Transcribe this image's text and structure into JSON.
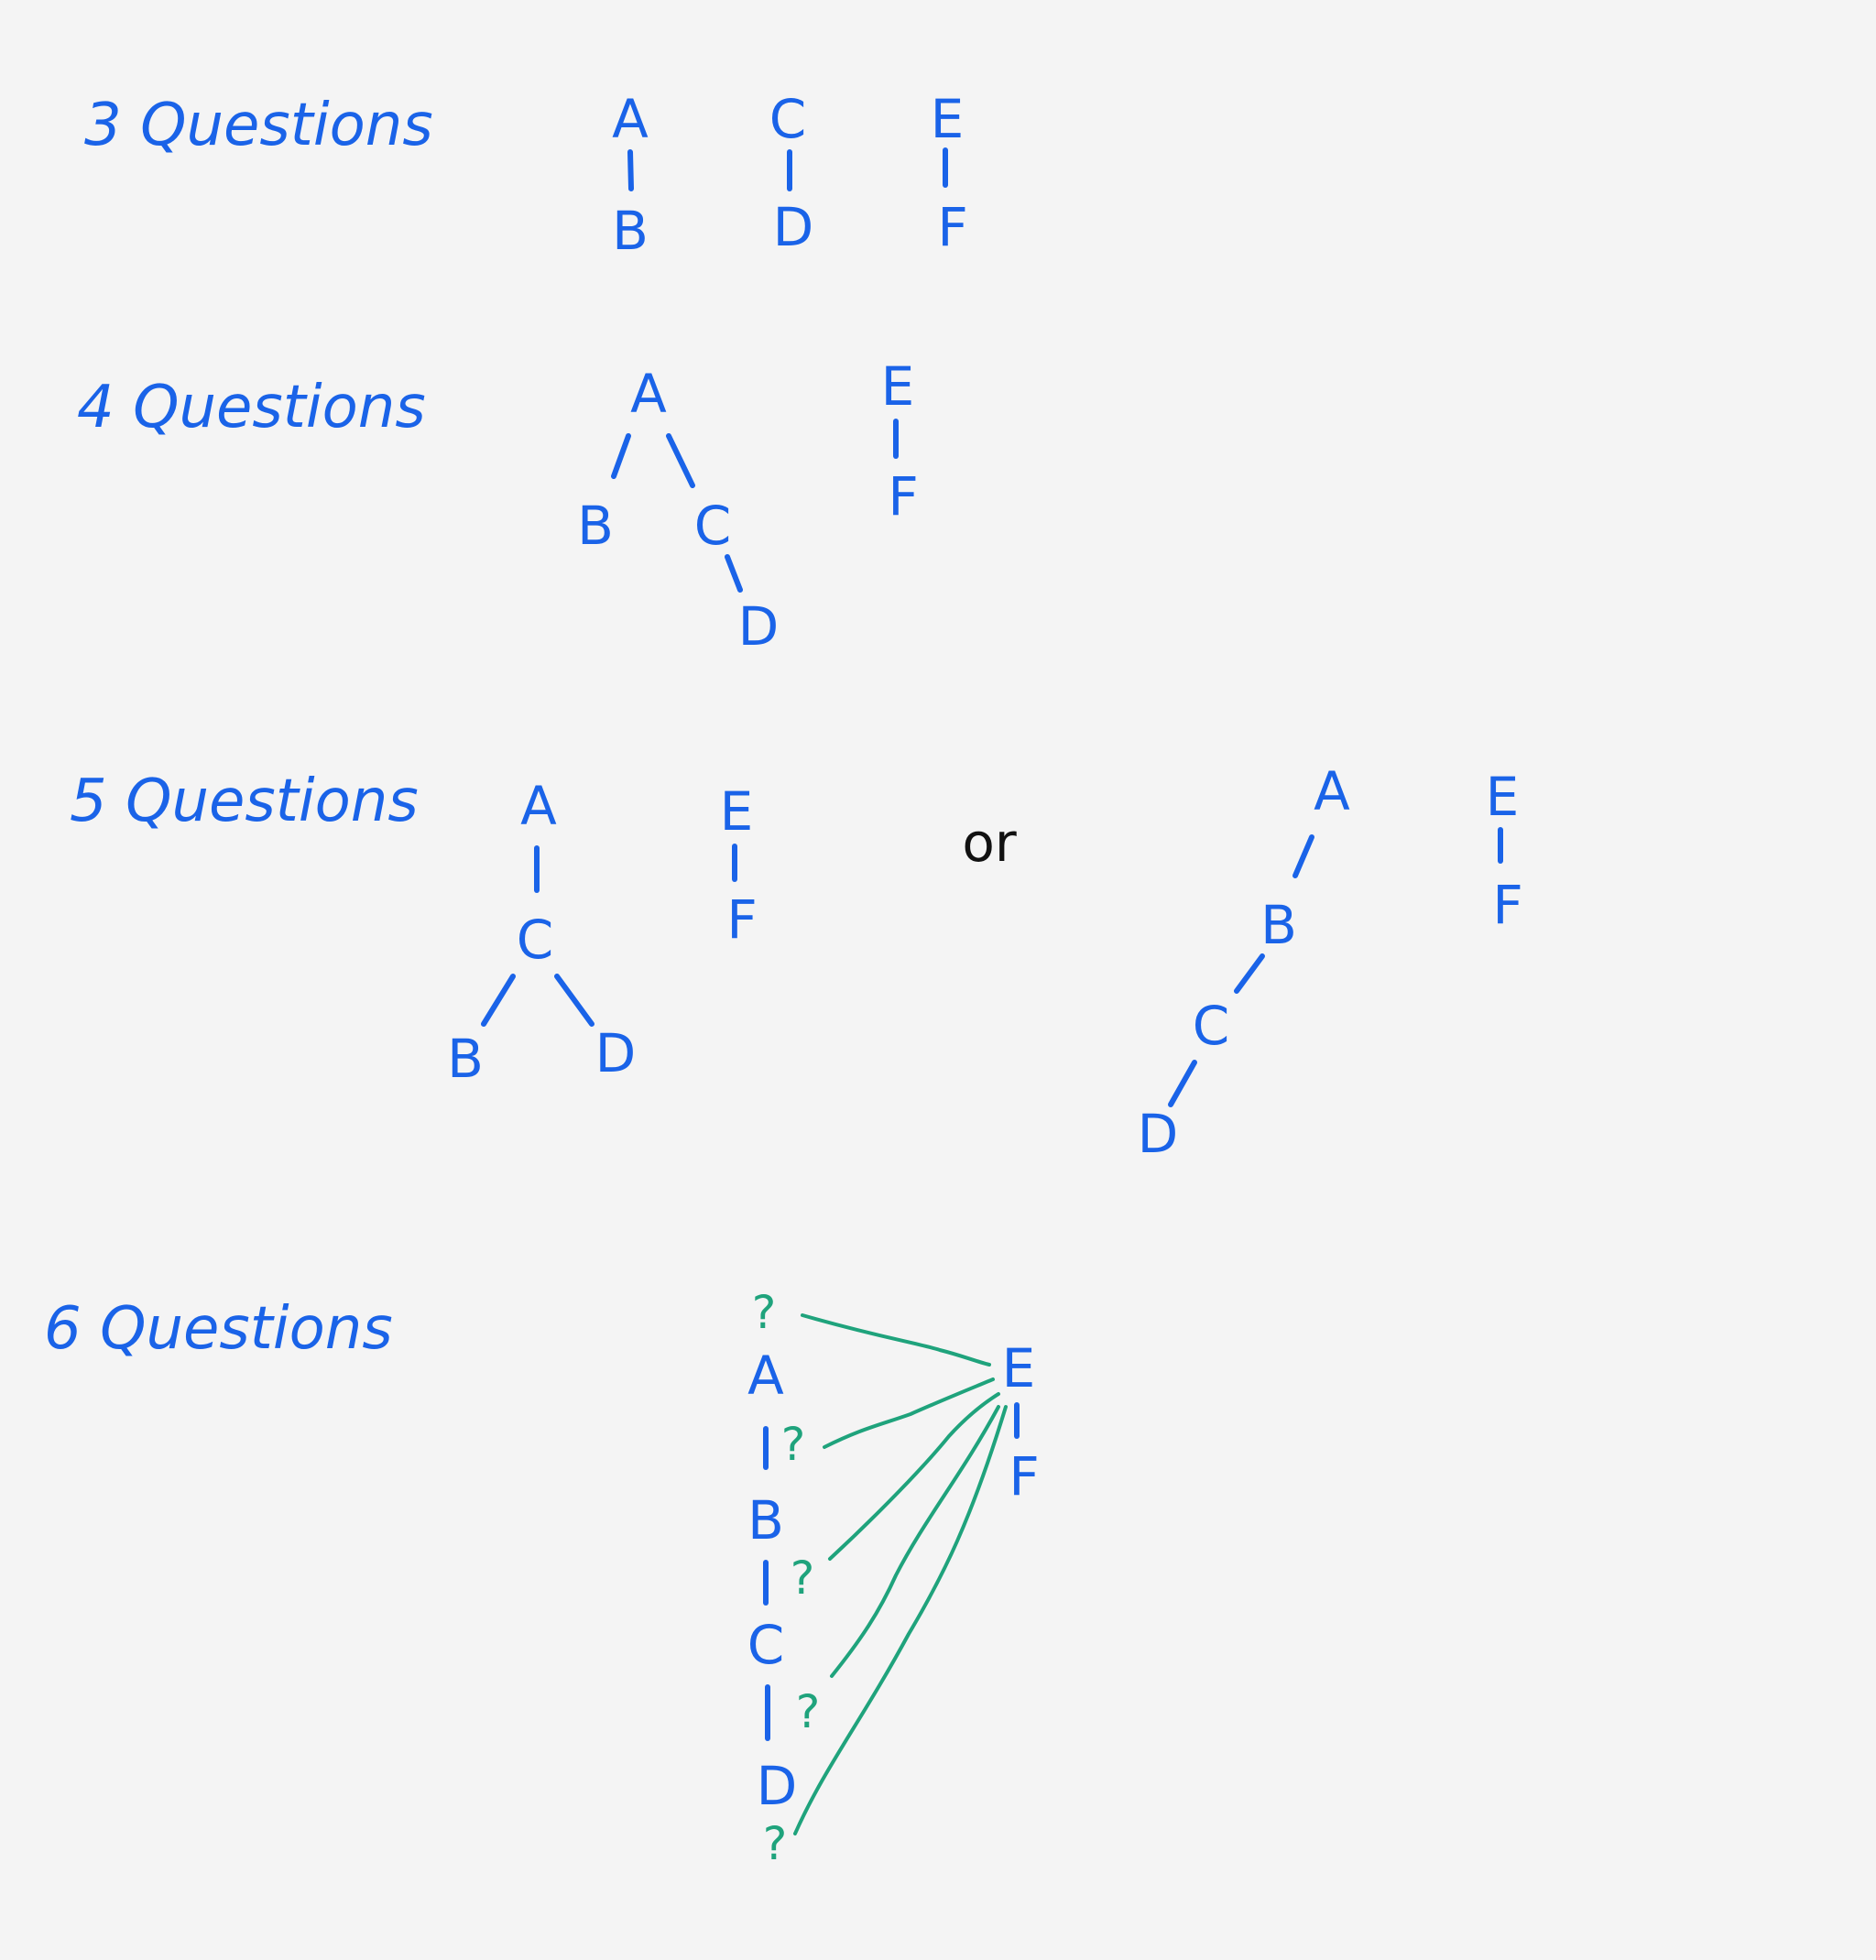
{
  "colors": {
    "background": "#f4f4f4",
    "ink_blue": "#1a63e8",
    "ink_black": "#111111",
    "ink_green": "#1fa37c"
  },
  "rows": {
    "three": {
      "title": "3 Questions"
    },
    "four": {
      "title": "4 Questions"
    },
    "five": {
      "title": "5 Questions",
      "or_label": "or"
    },
    "six": {
      "title": "6 Questions"
    }
  },
  "nodes": {
    "A": "A",
    "B": "B",
    "C": "C",
    "D": "D",
    "E": "E",
    "F": "F",
    "question": "?"
  }
}
